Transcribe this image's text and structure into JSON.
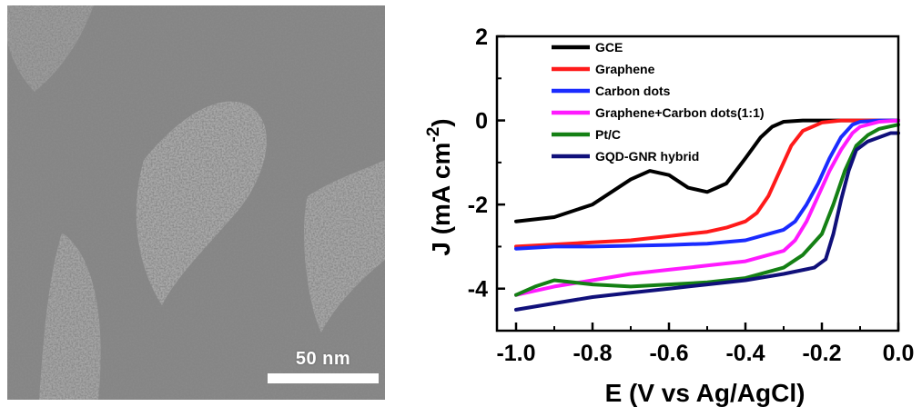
{
  "scale_bar": {
    "label": "50 nm"
  },
  "colors": {
    "tem_background": "#8c8c8c",
    "axis": "#000000"
  },
  "chart_data": {
    "type": "line",
    "xlabel": "E (V vs Ag/AgCl)",
    "ylabel_main": "J (mA cm",
    "ylabel_sup": "-2",
    "ylabel_close": ")",
    "xlim": [
      -1.05,
      0.0
    ],
    "ylim": [
      -5,
      2
    ],
    "xticks": [
      -1.0,
      -0.8,
      -0.6,
      -0.4,
      -0.2,
      0.0
    ],
    "xtick_labels": [
      "-1.0",
      "-0.8",
      "-0.6",
      "-0.4",
      "-0.2",
      "0.0"
    ],
    "yticks": [
      -4,
      -2,
      0,
      2
    ],
    "ytick_labels": [
      "-4",
      "-2",
      "0",
      "2"
    ],
    "legend_position": "top-left",
    "series": [
      {
        "name": "GCE",
        "color": "#000000",
        "x": [
          -1.0,
          -0.9,
          -0.8,
          -0.7,
          -0.65,
          -0.6,
          -0.55,
          -0.5,
          -0.45,
          -0.4,
          -0.36,
          -0.33,
          -0.3,
          -0.25,
          -0.2,
          -0.1,
          0.0
        ],
        "y": [
          -2.4,
          -2.3,
          -2.0,
          -1.4,
          -1.2,
          -1.3,
          -1.6,
          -1.7,
          -1.5,
          -0.9,
          -0.4,
          -0.15,
          -0.03,
          0.0,
          0.0,
          0.0,
          0.0
        ]
      },
      {
        "name": "Graphene",
        "color": "#ff1a1a",
        "x": [
          -1.0,
          -0.9,
          -0.8,
          -0.7,
          -0.6,
          -0.5,
          -0.45,
          -0.4,
          -0.37,
          -0.34,
          -0.31,
          -0.28,
          -0.25,
          -0.2,
          -0.15,
          -0.1,
          0.0
        ],
        "y": [
          -3.0,
          -2.95,
          -2.9,
          -2.85,
          -2.75,
          -2.65,
          -2.55,
          -2.4,
          -2.2,
          -1.8,
          -1.2,
          -0.6,
          -0.25,
          -0.05,
          0.0,
          0.0,
          0.0
        ]
      },
      {
        "name": "Carbon dots",
        "color": "#1a2bff",
        "x": [
          -1.0,
          -0.9,
          -0.8,
          -0.7,
          -0.6,
          -0.5,
          -0.4,
          -0.3,
          -0.27,
          -0.24,
          -0.21,
          -0.18,
          -0.15,
          -0.12,
          -0.1,
          -0.05,
          0.0
        ],
        "y": [
          -3.05,
          -3.0,
          -3.0,
          -2.98,
          -2.96,
          -2.93,
          -2.85,
          -2.6,
          -2.4,
          -2.0,
          -1.5,
          -0.9,
          -0.4,
          -0.1,
          -0.03,
          0.0,
          0.0
        ]
      },
      {
        "name": "Graphene+Carbon dots(1:1)",
        "color": "#ff1aff",
        "x": [
          -1.0,
          -0.9,
          -0.8,
          -0.7,
          -0.6,
          -0.5,
          -0.4,
          -0.3,
          -0.27,
          -0.24,
          -0.21,
          -0.18,
          -0.15,
          -0.12,
          -0.1,
          -0.05,
          0.0
        ],
        "y": [
          -4.15,
          -3.95,
          -3.8,
          -3.65,
          -3.55,
          -3.45,
          -3.35,
          -3.1,
          -2.85,
          -2.4,
          -1.8,
          -1.2,
          -0.7,
          -0.3,
          -0.15,
          -0.03,
          0.0
        ]
      },
      {
        "name": "Pt/C",
        "color": "#148014",
        "x": [
          -1.0,
          -0.95,
          -0.9,
          -0.85,
          -0.8,
          -0.7,
          -0.6,
          -0.5,
          -0.4,
          -0.3,
          -0.25,
          -0.2,
          -0.17,
          -0.14,
          -0.11,
          -0.08,
          -0.05,
          0.0
        ],
        "y": [
          -4.15,
          -3.95,
          -3.8,
          -3.85,
          -3.9,
          -3.95,
          -3.9,
          -3.85,
          -3.75,
          -3.5,
          -3.2,
          -2.7,
          -2.0,
          -1.2,
          -0.6,
          -0.35,
          -0.2,
          -0.1
        ]
      },
      {
        "name": "GQD-GNR hybrid",
        "color": "#10107a",
        "x": [
          -1.0,
          -0.9,
          -0.8,
          -0.7,
          -0.6,
          -0.5,
          -0.4,
          -0.3,
          -0.22,
          -0.19,
          -0.17,
          -0.15,
          -0.13,
          -0.11,
          -0.08,
          -0.05,
          -0.02,
          0.0
        ],
        "y": [
          -4.5,
          -4.35,
          -4.2,
          -4.1,
          -4.0,
          -3.9,
          -3.8,
          -3.65,
          -3.5,
          -3.3,
          -2.7,
          -1.9,
          -1.2,
          -0.7,
          -0.5,
          -0.4,
          -0.3,
          -0.3
        ]
      }
    ]
  }
}
